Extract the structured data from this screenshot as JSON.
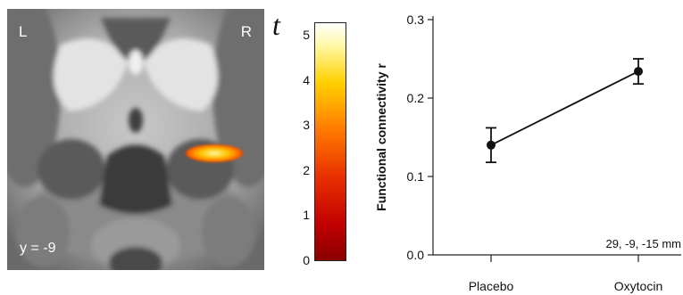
{
  "brain": {
    "left_label": "L",
    "right_label": "R",
    "slice_label": "y = -9"
  },
  "colorbar": {
    "label": "t",
    "ticks": [
      "0",
      "1",
      "2",
      "3",
      "4",
      "5"
    ],
    "range": [
      0,
      5.3
    ],
    "colors": [
      "#8b0000",
      "#c00000",
      "#e83000",
      "#ff7a00",
      "#ffd000",
      "#fff7a0",
      "#ffffff"
    ]
  },
  "chart_data": {
    "type": "line",
    "categories": [
      "Placebo",
      "Oxytocin"
    ],
    "series": [
      {
        "values": [
          0.14,
          0.234
        ],
        "errors": [
          0.022,
          0.016
        ]
      }
    ],
    "title": "",
    "xlabel": "",
    "ylabel": "Functional connectivity r",
    "ylim": [
      0,
      0.3
    ],
    "yticks": [
      "0.0",
      "0.1",
      "0.2",
      "0.3"
    ],
    "annotation": "29, -9, -15 mm",
    "grid": false
  }
}
